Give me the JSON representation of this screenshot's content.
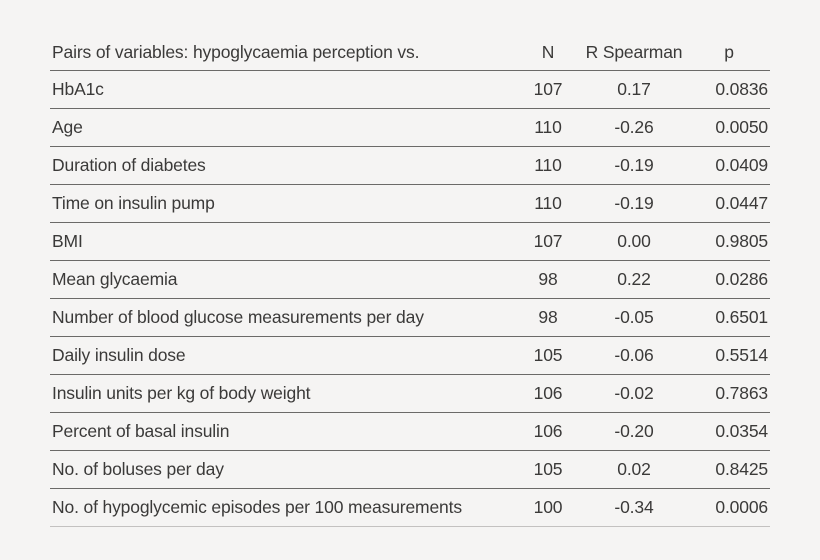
{
  "table": {
    "title_semantics": "Spearman correlations of hypoglycaemia perception with clinical variables",
    "columns": [
      {
        "label": "Pairs of variables: hypoglycaemia perception vs."
      },
      {
        "label": "N"
      },
      {
        "label": "R Spearman"
      },
      {
        "label": "p"
      }
    ],
    "rows": [
      {
        "variable": "HbA1c",
        "n": "107",
        "r": "0.17",
        "p": "0.0836"
      },
      {
        "variable": "Age",
        "n": "110",
        "r": "-0.26",
        "p": "0.0050"
      },
      {
        "variable": "Duration of diabetes",
        "n": "110",
        "r": "-0.19",
        "p": "0.0409"
      },
      {
        "variable": "Time on insulin pump",
        "n": "110",
        "r": "-0.19",
        "p": "0.0447"
      },
      {
        "variable": "BMI",
        "n": "107",
        "r": "0.00",
        "p": "0.9805"
      },
      {
        "variable": "Mean glycaemia",
        "n": "98",
        "r": "0.22",
        "p": "0.0286"
      },
      {
        "variable": "Number of blood glucose measurements per day",
        "n": "98",
        "r": "-0.05",
        "p": "0.6501"
      },
      {
        "variable": "Daily insulin dose",
        "n": "105",
        "r": "-0.06",
        "p": "0.5514"
      },
      {
        "variable": "Insulin units per kg of body weight",
        "n": "106",
        "r": "-0.02",
        "p": "0.7863"
      },
      {
        "variable": "Percent of basal insulin",
        "n": "106",
        "r": "-0.20",
        "p": "0.0354"
      },
      {
        "variable": "No. of boluses per day",
        "n": "105",
        "r": "0.02",
        "p": "0.8425"
      },
      {
        "variable": "No. of hypoglycemic episodes per 100 measurements",
        "n": "100",
        "r": "-0.34",
        "p": "0.0006"
      }
    ]
  },
  "colors": {
    "background": "#f5f4f3",
    "text": "#3b3a39",
    "row_divider": "#6b6a68",
    "bottom_divider": "#c3c1c0"
  }
}
